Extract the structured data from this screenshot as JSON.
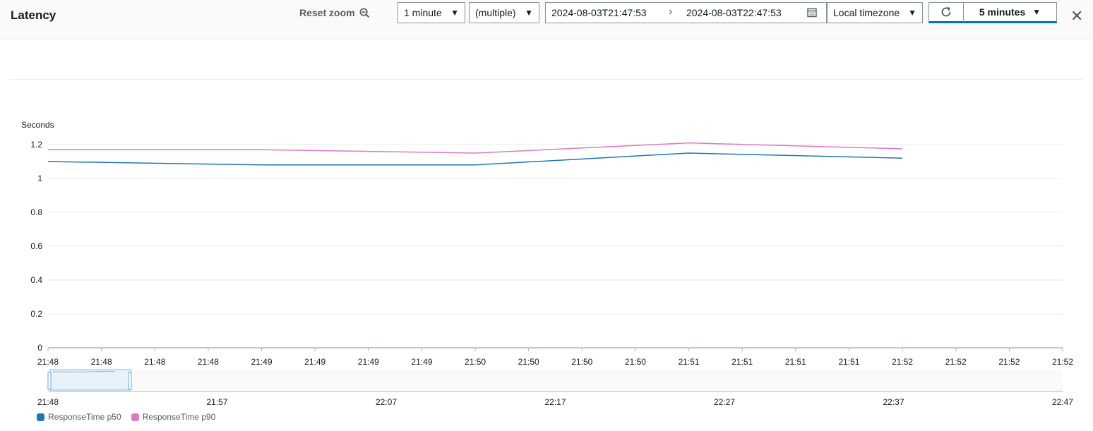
{
  "header": {
    "title": "Latency",
    "reset_zoom_label": "Reset zoom",
    "period_value": "1 minute",
    "statistic_value": "(multiple)",
    "range_start": "2024-08-03T21:47:53",
    "range_end": "2024-08-03T22:47:53",
    "timezone_value": "Local timezone",
    "refresh_interval_value": "5 minutes"
  },
  "colors": {
    "p50": "#1f77b4",
    "p90": "#e377c2",
    "accent": "#0073bb"
  },
  "chart_data": {
    "type": "line",
    "ylabel": "Seconds",
    "ylim": [
      0,
      1.2
    ],
    "yticks": [
      "0",
      "0.2",
      "0.4",
      "0.6",
      "0.8",
      "1",
      "1.2"
    ],
    "xticks": [
      "21:48",
      "21:48",
      "21:48",
      "21:48",
      "21:49",
      "21:49",
      "21:49",
      "21:49",
      "21:50",
      "21:50",
      "21:50",
      "21:50",
      "21:51",
      "21:51",
      "21:51",
      "21:51",
      "21:52",
      "21:52",
      "21:52",
      "21:52"
    ],
    "x": [
      "21:48",
      "21:49",
      "21:50",
      "21:51",
      "21:52"
    ],
    "series": [
      {
        "name": "ResponseTime p50",
        "values": [
          1.1,
          1.08,
          1.08,
          1.15,
          1.12
        ]
      },
      {
        "name": "ResponseTime p90",
        "values": [
          1.17,
          1.17,
          1.15,
          1.21,
          1.175
        ]
      }
    ],
    "overview_ticks": [
      "21:48",
      "21:57",
      "22:07",
      "22:17",
      "22:27",
      "22:37",
      "22:47"
    ],
    "grid": true,
    "legend": "bottom-left"
  }
}
